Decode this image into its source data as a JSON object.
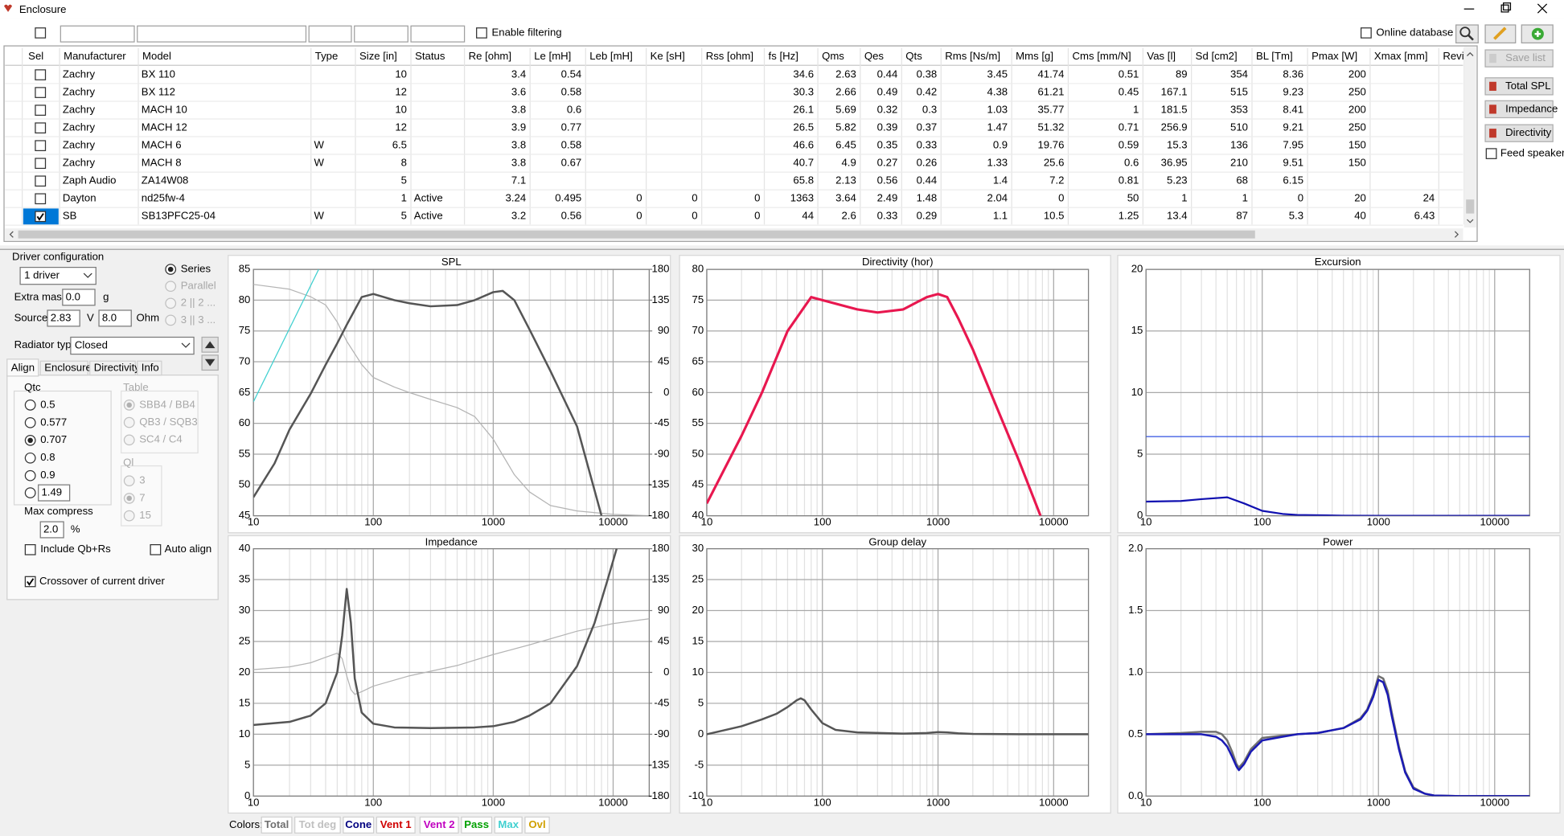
{
  "window": {
    "title": "Enclosure"
  },
  "toolbar": {
    "enable_filtering": "Enable filtering",
    "online_database": "Online database"
  },
  "table": {
    "headers": [
      "Sel",
      "Manufacturer",
      "Model",
      "Type",
      "Size [in]",
      "Status",
      "Re [ohm]",
      "Le [mH]",
      "Leb [mH]",
      "Ke [sH]",
      "Rss [ohm]",
      "fs [Hz]",
      "Qms",
      "Qes",
      "Qts",
      "Rms [Ns/m]",
      "Mms [g]",
      "Cms [mm/N]",
      "Vas [l]",
      "Sd [cm2]",
      "BL [Tm]",
      "Pmax [W]",
      "Xmax [mm]",
      "Revis"
    ],
    "rows": [
      {
        "sel": false,
        "cells": [
          "Zachry",
          "BX 110",
          null,
          10,
          null,
          3.4,
          0.54,
          null,
          null,
          null,
          34.6,
          2.63,
          0.44,
          0.38,
          3.45,
          41.74,
          0.51,
          89,
          354,
          8.36,
          200,
          null
        ]
      },
      {
        "sel": false,
        "cells": [
          "Zachry",
          "BX 112",
          null,
          12,
          null,
          3.6,
          0.58,
          null,
          null,
          null,
          30.3,
          2.66,
          0.49,
          0.42,
          4.38,
          61.21,
          0.45,
          167.1,
          515,
          9.23,
          250,
          null
        ]
      },
      {
        "sel": false,
        "cells": [
          "Zachry",
          "MACH 10",
          null,
          10,
          null,
          3.8,
          0.6,
          null,
          null,
          null,
          26.1,
          5.69,
          0.32,
          0.3,
          1.03,
          35.77,
          1,
          181.5,
          353,
          8.41,
          200,
          null
        ]
      },
      {
        "sel": false,
        "cells": [
          "Zachry",
          "MACH 12",
          null,
          12,
          null,
          3.9,
          0.77,
          null,
          null,
          null,
          26.5,
          5.82,
          0.39,
          0.37,
          1.47,
          51.32,
          0.71,
          256.9,
          510,
          9.21,
          250,
          null
        ]
      },
      {
        "sel": false,
        "cells": [
          "Zachry",
          "MACH 6",
          "W",
          6.5,
          null,
          3.8,
          0.58,
          null,
          null,
          null,
          46.6,
          6.45,
          0.35,
          0.33,
          0.9,
          19.76,
          0.59,
          15.3,
          136,
          7.95,
          150,
          null
        ]
      },
      {
        "sel": false,
        "cells": [
          "Zachry",
          "MACH 8",
          "W",
          8,
          null,
          3.8,
          0.67,
          null,
          null,
          null,
          40.7,
          4.9,
          0.27,
          0.26,
          1.33,
          25.6,
          0.6,
          36.95,
          210,
          9.51,
          150,
          null
        ]
      },
      {
        "sel": false,
        "cells": [
          "Zaph Audio",
          "ZA14W08",
          null,
          5,
          null,
          7.1,
          null,
          null,
          null,
          null,
          65.8,
          2.13,
          0.56,
          0.44,
          1.4,
          7.2,
          0.81,
          5.23,
          68,
          6.15,
          null,
          null
        ]
      },
      {
        "sel": false,
        "cells": [
          "Dayton",
          "nd25fw-4",
          null,
          1,
          "Active",
          3.24,
          0.495,
          0,
          0,
          0,
          1363,
          3.64,
          2.49,
          1.48,
          2.04,
          0,
          50,
          1,
          1,
          0,
          20,
          24
        ]
      },
      {
        "sel": true,
        "cells": [
          "SB",
          "SB13PFC25-04",
          "W",
          5,
          "Active",
          3.2,
          0.56,
          0,
          0,
          0,
          44,
          2.6,
          0.33,
          0.29,
          1.1,
          10.5,
          1.25,
          13.4,
          87,
          5.3,
          40,
          6.43
        ]
      }
    ]
  },
  "buttons": {
    "save_list": "Save list",
    "total_spl": "Total SPL",
    "impedance": "Impedance",
    "directivity": "Directivity",
    "feed_speaker": "Feed speaker"
  },
  "panel": {
    "driver_configuration": "Driver configuration",
    "drivers": "1 driver",
    "connection": [
      "Series",
      "Parallel",
      "2 || 2 ...",
      "3 || 3 ..."
    ],
    "connection_selected": 0,
    "extra_mass": {
      "label": "Extra mass",
      "value": "0.0",
      "unit": "g"
    },
    "source": {
      "label": "Source",
      "voltage": "2.83",
      "voltage_unit": "V",
      "impedance": "8.0",
      "impedance_unit": "Ohm"
    },
    "radiator_type": {
      "label": "Radiator type",
      "value": "Closed"
    },
    "tabs": [
      "Align",
      "Enclosure",
      "Directivity",
      "Info"
    ],
    "tab_selected": 0,
    "qtc": {
      "label": "Qtc",
      "options": [
        "0.5",
        "0.577",
        "0.707",
        "0.8",
        "0.9"
      ],
      "custom": "1.49",
      "selected": 2
    },
    "table_group": {
      "label": "Table",
      "options": [
        "SBB4 / BB4",
        "QB3 / SQB3",
        "SC4 / C4"
      ],
      "selected": 0
    },
    "ql": {
      "label": "Ql",
      "options": [
        "3",
        "7",
        "15"
      ],
      "selected": 1
    },
    "max_compress": {
      "label": "Max compress",
      "value": "2.0",
      "unit": "%"
    },
    "include_qb_rs": {
      "label": "Include Qb+Rs",
      "checked": false
    },
    "auto_align": {
      "label": "Auto align",
      "checked": false
    },
    "crossover": {
      "label": "Crossover of current driver",
      "checked": true
    }
  },
  "charts": [
    {
      "title": "SPL",
      "log_x": true,
      "grid": true,
      "xlim": [
        10,
        20000
      ],
      "xticks": [
        10,
        100,
        1000,
        10000
      ],
      "ylim": [
        45,
        85
      ],
      "yticks": [
        45,
        50,
        55,
        60,
        65,
        70,
        75,
        80,
        85
      ],
      "y2lim": [
        -180,
        180
      ],
      "y2ticks": [
        -180,
        -135,
        -90,
        -45,
        0,
        45,
        90,
        135,
        180
      ],
      "series": [
        {
          "color": "#b4b4b4",
          "width": 1,
          "axis": "y2",
          "x": [
            10,
            20,
            30,
            40,
            50,
            60,
            80,
            100,
            150,
            200,
            300,
            500,
            700,
            1000,
            1500,
            2000,
            3000,
            5000,
            10000,
            20000
          ],
          "values": [
            158,
            151,
            140,
            128,
            103,
            75,
            41,
            22,
            8,
            0,
            -10,
            -22,
            -35,
            -68,
            -120,
            -145,
            -165,
            -173,
            -178,
            -180
          ]
        },
        {
          "color": "#40d0d0",
          "width": 1,
          "x": [
            10,
            35
          ],
          "values": [
            63.5,
            85
          ]
        },
        {
          "color": "#555555",
          "width": 2,
          "x": [
            10,
            15,
            20,
            30,
            40,
            50,
            60,
            80,
            100,
            150,
            200,
            300,
            500,
            700,
            1000,
            1200,
            1500,
            2000,
            3000,
            5000,
            8000
          ],
          "values": [
            48,
            53.5,
            59,
            64.8,
            69.5,
            73,
            76,
            80.5,
            81,
            80,
            79.5,
            79,
            79.2,
            80,
            81.3,
            81.5,
            80,
            75.3,
            68.5,
            59.5,
            45
          ]
        }
      ]
    },
    {
      "title": "Directivity (hor)",
      "log_x": true,
      "grid": true,
      "xlim": [
        10,
        20000
      ],
      "xticks": [
        10,
        100,
        1000,
        10000
      ],
      "ylim": [
        40,
        80
      ],
      "yticks": [
        40,
        45,
        50,
        55,
        60,
        65,
        70,
        75,
        80
      ],
      "series": [
        {
          "color": "#e8174f",
          "width": 2.5,
          "x": [
            10,
            20,
            30,
            50,
            80,
            100,
            200,
            300,
            500,
            800,
            1000,
            1200,
            1500,
            2000,
            3000,
            5000,
            7700
          ],
          "values": [
            42,
            53,
            60,
            70,
            75.5,
            75,
            73.5,
            73,
            73.5,
            75.5,
            76,
            75.5,
            72,
            67,
            59,
            49,
            40
          ]
        }
      ]
    },
    {
      "title": "Excursion",
      "log_x": true,
      "grid": true,
      "xlim": [
        10,
        20000
      ],
      "xticks": [
        10,
        100,
        1000,
        10000
      ],
      "ylim": [
        0,
        20
      ],
      "yticks": [
        0,
        5,
        10,
        15,
        20
      ],
      "series": [
        {
          "color": "#3050e0",
          "width": 1,
          "x": [
            10,
            20000
          ],
          "values": [
            6.43,
            6.43
          ]
        },
        {
          "color": "#1010b0",
          "width": 1.8,
          "x": [
            10,
            20,
            30,
            50,
            70,
            100,
            150,
            200,
            500,
            1000,
            20000
          ],
          "values": [
            1.15,
            1.2,
            1.35,
            1.5,
            1.0,
            0.4,
            0.15,
            0.07,
            0.01,
            0,
            0
          ]
        }
      ]
    },
    {
      "title": "Impedance",
      "log_x": true,
      "grid": true,
      "xlim": [
        10,
        20000
      ],
      "xticks": [
        10,
        100,
        1000,
        10000
      ],
      "ylim": [
        0,
        40
      ],
      "yticks": [
        0,
        5,
        10,
        15,
        20,
        25,
        30,
        35,
        40
      ],
      "y2lim": [
        -180,
        180
      ],
      "y2ticks": [
        -180,
        -135,
        -90,
        -45,
        0,
        45,
        90,
        135,
        180
      ],
      "series": [
        {
          "color": "#b4b4b4",
          "width": 1,
          "axis": "y2",
          "x": [
            10,
            20,
            30,
            40,
            50,
            55,
            60,
            65,
            70,
            80,
            100,
            200,
            500,
            1000,
            2000,
            5000,
            10000,
            20000
          ],
          "values": [
            4,
            8,
            14,
            22,
            28,
            20,
            -5,
            -25,
            -32,
            -28,
            -20,
            -5,
            10,
            26,
            40,
            60,
            71,
            78
          ]
        },
        {
          "color": "#555555",
          "width": 2,
          "x": [
            10,
            20,
            30,
            40,
            50,
            55,
            60,
            65,
            70,
            80,
            100,
            150,
            300,
            700,
            1000,
            1500,
            2000,
            3000,
            5000,
            7000,
            9000,
            10700
          ],
          "values": [
            11.5,
            12,
            13,
            15,
            20,
            26,
            33.5,
            28,
            19,
            13.5,
            11.7,
            11.1,
            11,
            11.1,
            11.3,
            12,
            13,
            15,
            21,
            28,
            35,
            40
          ]
        }
      ]
    },
    {
      "title": "Group delay",
      "log_x": true,
      "grid": true,
      "xlim": [
        10,
        20000
      ],
      "xticks": [
        10,
        100,
        1000,
        10000
      ],
      "ylim": [
        -10,
        30
      ],
      "yticks": [
        -10,
        -5,
        0,
        5,
        10,
        15,
        20,
        25,
        30
      ],
      "series": [
        {
          "color": "#555555",
          "width": 2,
          "x": [
            10,
            20,
            30,
            40,
            50,
            60,
            65,
            70,
            80,
            100,
            130,
            200,
            500,
            800,
            1000,
            1200,
            1500,
            2000,
            5000,
            20000
          ],
          "values": [
            0,
            1.3,
            2.4,
            3.3,
            4.4,
            5.5,
            5.8,
            5.5,
            4,
            1.8,
            0.7,
            0.3,
            0.1,
            0.2,
            0.35,
            0.3,
            0.15,
            0.05,
            0,
            0
          ]
        }
      ]
    },
    {
      "title": "Power",
      "log_x": true,
      "grid": true,
      "xlim": [
        10,
        20000
      ],
      "xticks": [
        10,
        100,
        1000,
        10000
      ],
      "ylim": [
        0,
        2
      ],
      "yticks": [
        {
          "value": 0,
          "label": "0.0"
        },
        0.5,
        {
          "value": 1,
          "label": "1.0"
        },
        1.5,
        {
          "value": 2,
          "label": "2.0"
        }
      ],
      "series": [
        {
          "color": "#707070",
          "width": 2,
          "x": [
            10,
            20,
            30,
            40,
            45,
            50,
            55,
            60,
            63,
            70,
            80,
            100,
            150,
            200,
            300,
            500,
            700,
            800,
            900,
            1000,
            1100,
            1200,
            1300,
            1500,
            1700,
            2000,
            2500,
            3000,
            5000,
            20000
          ],
          "values": [
            0.5,
            0.51,
            0.52,
            0.52,
            0.5,
            0.45,
            0.36,
            0.26,
            0.23,
            0.28,
            0.38,
            0.47,
            0.49,
            0.5,
            0.51,
            0.55,
            0.63,
            0.7,
            0.82,
            0.97,
            0.95,
            0.85,
            0.68,
            0.4,
            0.2,
            0.07,
            0.02,
            0.005,
            0,
            0
          ]
        },
        {
          "color": "#1a1ab4",
          "width": 2,
          "x": [
            10,
            20,
            30,
            40,
            45,
            50,
            55,
            60,
            63,
            70,
            80,
            100,
            150,
            200,
            300,
            500,
            700,
            800,
            900,
            1000,
            1100,
            1200,
            1300,
            1500,
            1700,
            2000,
            2500,
            3000,
            5000,
            20000
          ],
          "values": [
            0.5,
            0.5,
            0.5,
            0.48,
            0.45,
            0.4,
            0.32,
            0.24,
            0.21,
            0.26,
            0.36,
            0.45,
            0.48,
            0.5,
            0.51,
            0.55,
            0.62,
            0.69,
            0.8,
            0.94,
            0.92,
            0.82,
            0.65,
            0.38,
            0.19,
            0.06,
            0.02,
            0.005,
            0,
            0
          ]
        }
      ]
    }
  ],
  "colors": {
    "label": "Colors:",
    "items": [
      {
        "name": "Total",
        "color": "#707070"
      },
      {
        "name": "Tot deg",
        "color": "#c0c0c0"
      },
      {
        "name": "Cone",
        "color": "#000080"
      },
      {
        "name": "Vent 1",
        "color": "#d00000"
      },
      {
        "name": "Vent 2",
        "color": "#c000c0"
      },
      {
        "name": "Pass",
        "color": "#00a000"
      },
      {
        "name": "Max",
        "color": "#40d0d0"
      },
      {
        "name": "Ovl",
        "color": "#d0a000"
      }
    ]
  }
}
